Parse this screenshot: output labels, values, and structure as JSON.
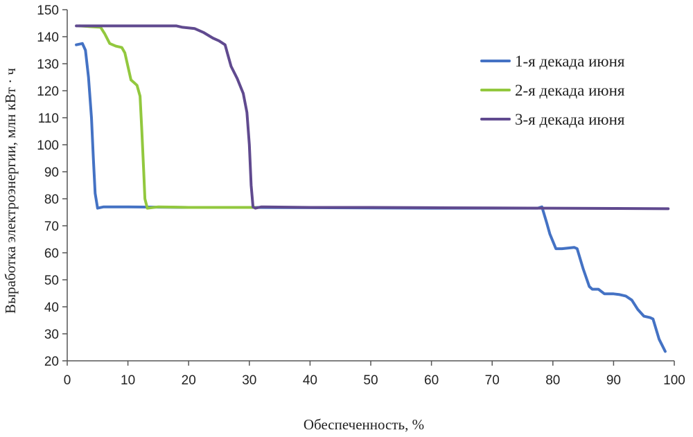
{
  "chart_data": {
    "type": "line",
    "title": "",
    "xlabel": "Обеспеченность, %",
    "ylabel": "Выработка электроэнергии, млн кВт · ч",
    "xlim": [
      0,
      100
    ],
    "ylim": [
      20,
      150
    ],
    "xticks": [
      0,
      10,
      20,
      30,
      40,
      50,
      60,
      70,
      80,
      90,
      100
    ],
    "yticks": [
      20,
      30,
      40,
      50,
      60,
      70,
      80,
      90,
      100,
      110,
      120,
      130,
      140,
      150
    ],
    "grid": false,
    "legend_position": "top-right",
    "series": [
      {
        "name": "1-я декада июня",
        "color": "#4472c4",
        "points": [
          [
            1.5,
            137
          ],
          [
            2.5,
            137.5
          ],
          [
            3,
            135
          ],
          [
            3.5,
            125
          ],
          [
            4,
            110
          ],
          [
            4.3,
            95
          ],
          [
            4.6,
            82
          ],
          [
            5,
            76.5
          ],
          [
            6,
            77
          ],
          [
            10,
            77
          ],
          [
            20,
            76.8
          ],
          [
            30,
            76.8
          ],
          [
            40,
            76.7
          ],
          [
            50,
            76.6
          ],
          [
            60,
            76.5
          ],
          [
            70,
            76.5
          ],
          [
            77.5,
            76.5
          ],
          [
            78.2,
            77
          ],
          [
            79,
            71
          ],
          [
            79.5,
            67
          ],
          [
            80.5,
            61.5
          ],
          [
            81.5,
            61.5
          ],
          [
            83.5,
            62
          ],
          [
            84,
            61.5
          ],
          [
            85,
            54
          ],
          [
            86,
            47.5
          ],
          [
            86.5,
            46.5
          ],
          [
            87.5,
            46.5
          ],
          [
            88.5,
            44.8
          ],
          [
            90,
            44.8
          ],
          [
            91,
            44.5
          ],
          [
            92,
            44
          ],
          [
            93,
            42.5
          ],
          [
            94,
            39
          ],
          [
            95,
            36.5
          ],
          [
            96,
            36
          ],
          [
            96.5,
            35.5
          ],
          [
            97.5,
            28
          ],
          [
            98.5,
            23.5
          ]
        ]
      },
      {
        "name": "2-я декада июня",
        "color": "#92c83e",
        "points": [
          [
            2,
            144
          ],
          [
            5.5,
            143.5
          ],
          [
            6.2,
            141
          ],
          [
            7,
            137.5
          ],
          [
            8,
            136.5
          ],
          [
            9,
            136
          ],
          [
            9.5,
            134
          ],
          [
            10.5,
            124
          ],
          [
            11,
            123
          ],
          [
            11.5,
            122
          ],
          [
            12,
            118
          ],
          [
            12.3,
            105
          ],
          [
            12.6,
            90
          ],
          [
            12.8,
            80
          ],
          [
            13.2,
            76.5
          ],
          [
            15,
            77
          ],
          [
            20,
            76.8
          ],
          [
            30,
            76.8
          ],
          [
            31,
            76.8
          ]
        ]
      },
      {
        "name": "3-я декада июня",
        "color": "#604a8f",
        "points": [
          [
            1.5,
            144
          ],
          [
            10,
            144
          ],
          [
            18,
            144
          ],
          [
            19,
            143.5
          ],
          [
            21,
            143
          ],
          [
            22.5,
            141.5
          ],
          [
            24,
            139.5
          ],
          [
            25,
            138.5
          ],
          [
            26,
            137
          ],
          [
            26.5,
            133
          ],
          [
            27,
            129
          ],
          [
            28,
            124.5
          ],
          [
            29,
            119
          ],
          [
            29.6,
            112
          ],
          [
            30,
            100
          ],
          [
            30.3,
            85
          ],
          [
            30.6,
            77
          ],
          [
            31,
            76.5
          ],
          [
            32,
            77
          ],
          [
            40,
            76.8
          ],
          [
            50,
            76.8
          ],
          [
            60,
            76.7
          ],
          [
            70,
            76.6
          ],
          [
            80,
            76.5
          ],
          [
            90,
            76.4
          ],
          [
            99,
            76.3
          ]
        ]
      }
    ]
  }
}
